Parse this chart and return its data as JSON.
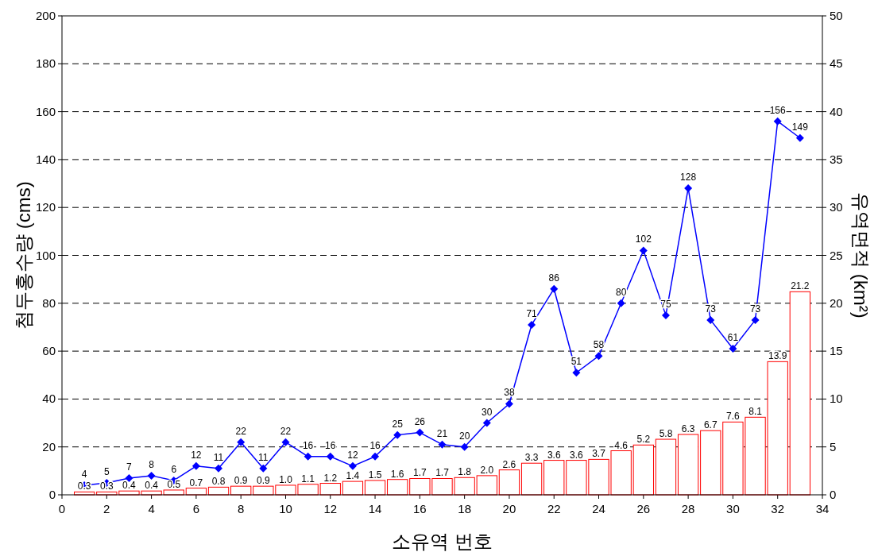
{
  "chart_data": {
    "type": "line",
    "xlabel": "소유역 번호",
    "ylabel": "첨두홍수량 (cms)",
    "y2label": "유역면적 (km²)",
    "x": [
      1,
      2,
      3,
      4,
      5,
      6,
      7,
      8,
      9,
      10,
      11,
      12,
      13,
      14,
      15,
      16,
      17,
      18,
      19,
      20,
      21,
      22,
      23,
      24,
      25,
      26,
      27,
      28,
      29,
      30,
      31,
      32,
      33
    ],
    "xlim": [
      0,
      34
    ],
    "xticks": [
      0,
      2,
      4,
      6,
      8,
      10,
      12,
      14,
      16,
      18,
      20,
      22,
      24,
      26,
      28,
      30,
      32,
      34
    ],
    "ylim": [
      0,
      200
    ],
    "yticks": [
      0,
      20,
      40,
      60,
      80,
      100,
      120,
      140,
      160,
      180,
      200
    ],
    "y2lim": [
      0,
      50
    ],
    "y2ticks": [
      0,
      5,
      10,
      15,
      20,
      25,
      30,
      35,
      40,
      45,
      50
    ],
    "grid": "y",
    "marker": "diamond",
    "series": [
      {
        "type": "bar",
        "axis": "y2",
        "color": "#ff0000",
        "values": [
          0.3,
          0.3,
          0.4,
          0.4,
          0.5,
          0.7,
          0.8,
          0.9,
          0.9,
          1.0,
          1.1,
          1.2,
          1.4,
          1.5,
          1.6,
          1.7,
          1.7,
          1.8,
          2.0,
          2.6,
          3.3,
          3.6,
          3.6,
          3.7,
          4.6,
          5.2,
          5.8,
          6.3,
          6.7,
          7.6,
          8.1,
          13.9,
          21.2
        ],
        "value_labels": [
          "0.3",
          "0.3",
          "0.4",
          "0.4",
          "0.5",
          "0.7",
          "0.8",
          "0.9",
          "0.9",
          "1.0",
          "1.1",
          "1.2",
          "1.4",
          "1.5",
          "1.6",
          "1.7",
          "1.7",
          "1.8",
          "2.0",
          "2.6",
          "3.3",
          "3.6",
          "3.6",
          "3.7",
          "4.6",
          "5.2",
          "5.8",
          "6.3",
          "6.7",
          "7.6",
          "8.1",
          "13.9",
          "21.2"
        ]
      },
      {
        "color": "#0000ff",
        "values": [
          4,
          5,
          7,
          8,
          6,
          12,
          11,
          22,
          11,
          22,
          16,
          16,
          12,
          16,
          25,
          26,
          21,
          20,
          30,
          38,
          71,
          86,
          51,
          58,
          80,
          102,
          75,
          128,
          73,
          61,
          73,
          156,
          149
        ],
        "value_labels": [
          "4",
          "5",
          "7",
          "8",
          "6",
          "12",
          "11",
          "22",
          "11",
          "22",
          "16",
          "16",
          "12",
          "16",
          "25",
          "26",
          "21",
          "20",
          "30",
          "38",
          "71",
          "86",
          "51",
          "58",
          "80",
          "102",
          "75",
          "128",
          "73",
          "61",
          "73",
          "156",
          "149"
        ]
      }
    ]
  }
}
